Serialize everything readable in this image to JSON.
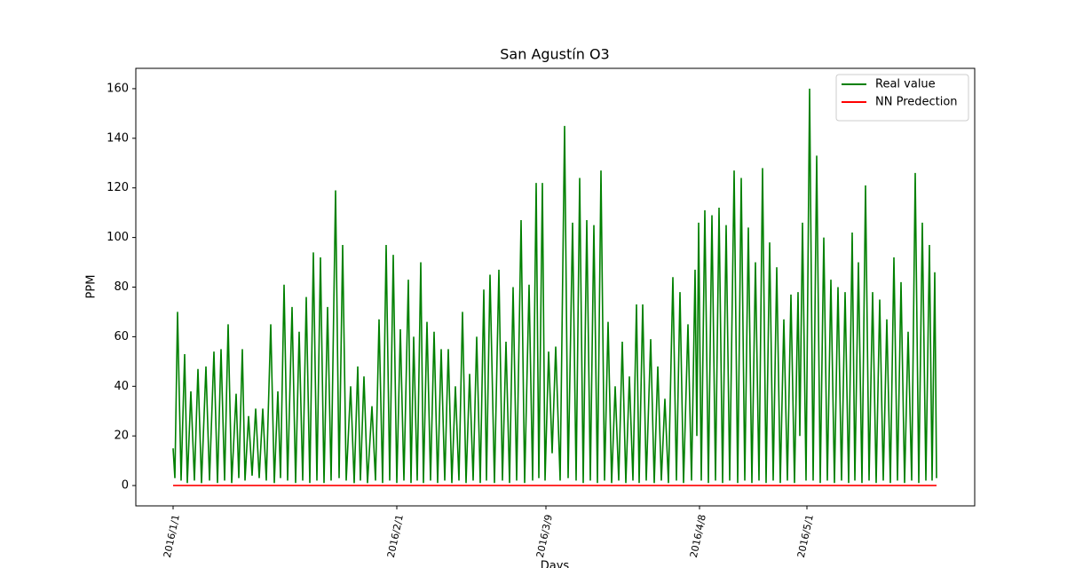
{
  "chart_data": {
    "type": "line",
    "title": "San Agustín O3",
    "xlabel": "Days",
    "ylabel": "PPM",
    "xlim": [
      -42,
      903
    ],
    "ylim": [
      -8.2,
      168.2
    ],
    "xticks": [
      {
        "value": 0,
        "label": "2016/1/1"
      },
      {
        "value": 252,
        "label": "2016/2/1"
      },
      {
        "value": 420,
        "label": "2016/3/9"
      },
      {
        "value": 593,
        "label": "2016/4/8"
      },
      {
        "value": 714,
        "label": "2016/5/1"
      }
    ],
    "yticks": [
      0,
      20,
      40,
      60,
      80,
      100,
      120,
      140,
      160
    ],
    "legend": "upper right",
    "series": [
      {
        "name": "Real value",
        "color": "#008000",
        "x": [
          0,
          2,
          5,
          9,
          13,
          16,
          20,
          24,
          28,
          32,
          37,
          41,
          46,
          50,
          54,
          58,
          62,
          66,
          71,
          74,
          78,
          81,
          85,
          89,
          93,
          97,
          101,
          105,
          110,
          114,
          118,
          121,
          125,
          129,
          134,
          138,
          142,
          146,
          150,
          154,
          158,
          162,
          166,
          170,
          174,
          178,
          183,
          187,
          191,
          195,
          200,
          204,
          208,
          211,
          215,
          219,
          224,
          228,
          232,
          236,
          240,
          244,
          248,
          252,
          256,
          260,
          265,
          268,
          271,
          275,
          279,
          282,
          286,
          290,
          294,
          298,
          302,
          306,
          310,
          314,
          318,
          322,
          326,
          330,
          334,
          338,
          342,
          346,
          350,
          353,
          357,
          362,
          367,
          371,
          375,
          379,
          383,
          387,
          392,
          396,
          401,
          405,
          409,
          412,
          416,
          419,
          423,
          427,
          431,
          436,
          441,
          445,
          450,
          454,
          458,
          462,
          466,
          470,
          474,
          478,
          482,
          486,
          490,
          494,
          498,
          502,
          506,
          510,
          514,
          518,
          522,
          525,
          529,
          533,
          538,
          542,
          546,
          550,
          554,
          558,
          563,
          567,
          571,
          575,
          580,
          584,
          588,
          590,
          592,
          595,
          599,
          603,
          607,
          611,
          615,
          619,
          623,
          627,
          632,
          636,
          640,
          644,
          648,
          652,
          656,
          660,
          664,
          668,
          672,
          676,
          680,
          684,
          688,
          692,
          696,
          700,
          704,
          706,
          709,
          713,
          717,
          721,
          725,
          729,
          733,
          737,
          741,
          745,
          749,
          753,
          757,
          761,
          765,
          768,
          772,
          776,
          780,
          784,
          788,
          792,
          796,
          800,
          804,
          808,
          812,
          816,
          820,
          824,
          828,
          832,
          836,
          840,
          844,
          848,
          852,
          855,
          858,
          860
        ],
        "values": [
          15,
          3,
          70,
          2,
          53,
          1,
          38,
          2,
          47,
          1,
          48,
          2,
          54,
          1,
          55,
          2,
          65,
          1,
          37,
          3,
          55,
          2,
          28,
          4,
          31,
          3,
          31,
          2,
          65,
          1,
          38,
          3,
          81,
          2,
          72,
          1,
          62,
          2,
          76,
          1,
          94,
          2,
          92,
          1,
          72,
          2,
          119,
          3,
          97,
          2,
          40,
          1,
          48,
          2,
          44,
          1,
          32,
          2,
          67,
          1,
          97,
          2,
          93,
          1,
          63,
          2,
          83,
          1,
          60,
          2,
          90,
          1,
          66,
          2,
          62,
          1,
          55,
          2,
          55,
          1,
          40,
          2,
          70,
          1,
          45,
          2,
          60,
          1,
          79,
          2,
          85,
          1,
          87,
          2,
          58,
          1,
          80,
          2,
          107,
          1,
          81,
          2,
          122,
          3,
          122,
          2,
          54,
          13,
          56,
          2,
          145,
          3,
          106,
          2,
          124,
          1,
          107,
          2,
          105,
          1,
          127,
          2,
          66,
          1,
          40,
          2,
          58,
          1,
          44,
          2,
          73,
          1,
          73,
          2,
          59,
          1,
          48,
          2,
          35,
          1,
          84,
          2,
          78,
          1,
          65,
          2,
          87,
          20,
          106,
          2,
          111,
          1,
          109,
          2,
          112,
          1,
          105,
          2,
          127,
          1,
          124,
          2,
          104,
          1,
          90,
          2,
          128,
          1,
          98,
          2,
          88,
          1,
          67,
          2,
          77,
          1,
          78,
          20,
          106,
          2,
          160,
          2,
          133,
          1,
          100,
          2,
          83,
          1,
          80,
          2,
          78,
          1,
          102,
          2,
          90,
          1,
          121,
          2,
          78,
          1,
          75,
          2,
          67,
          1,
          92,
          2,
          82,
          1,
          62,
          2,
          126,
          1,
          106,
          2,
          97,
          2,
          86,
          3
        ]
      },
      {
        "name": "NN Predection",
        "color": "#ff0000",
        "x": [
          0,
          860
        ],
        "values": [
          0,
          0
        ]
      }
    ]
  }
}
